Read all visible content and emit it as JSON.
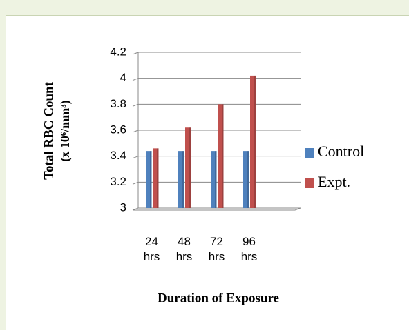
{
  "chart_data": {
    "type": "bar",
    "y_label": [
      "Total RBC Count",
      "(x 10⁶/mm³)"
    ],
    "x_label": "Duration of Exposure",
    "categories": [
      "24 hrs",
      "48 hrs",
      "72 hrs",
      "96 hrs"
    ],
    "series": [
      {
        "name": "Control",
        "color": "#4f81bd",
        "values": [
          3.44,
          3.44,
          3.44,
          3.44
        ]
      },
      {
        "name": "Expt.",
        "color": "#c0504d",
        "values": [
          3.46,
          3.62,
          3.8,
          4.02
        ]
      }
    ],
    "ylim": [
      3,
      4.2
    ],
    "yticks": [
      3,
      3.2,
      3.4,
      3.6,
      3.8,
      4,
      4.2
    ],
    "grid": true,
    "legend": "right"
  }
}
